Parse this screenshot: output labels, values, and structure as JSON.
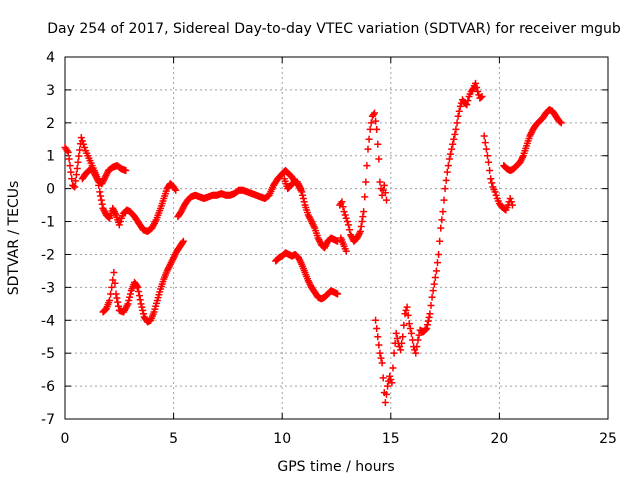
{
  "chart_data": {
    "type": "scatter",
    "title": "Day 254 of 2017, Sidereal Day-to-day VTEC variation (SDTVAR) for receiver mgub",
    "xlabel": "GPS time / hours",
    "ylabel": "SDTVAR / TECUs",
    "xlim": [
      0,
      25
    ],
    "ylim": [
      -7,
      4
    ],
    "xticks": [
      0,
      5,
      10,
      15,
      20,
      25
    ],
    "yticks": [
      -7,
      -6,
      -5,
      -4,
      -3,
      -2,
      -1,
      0,
      1,
      2,
      3,
      4
    ],
    "grid": true,
    "marker": "+",
    "color": "#ff0000",
    "series": [
      {
        "values": [
          [
            0.0,
            1.25
          ],
          [
            0.05,
            1.2
          ],
          [
            0.1,
            1.15
          ],
          [
            0.15,
            1.1
          ],
          [
            0.35,
            0.1
          ],
          [
            0.45,
            0.05
          ],
          [
            0.75,
            1.55
          ],
          [
            0.85,
            1.35
          ],
          [
            0.95,
            1.15
          ],
          [
            1.05,
            1.0
          ],
          [
            1.15,
            0.85
          ],
          [
            1.25,
            0.7
          ],
          [
            1.35,
            0.55
          ],
          [
            1.5,
            0.3
          ],
          [
            1.6,
            -0.1
          ],
          [
            1.75,
            -0.6
          ],
          [
            1.9,
            -0.8
          ],
          [
            2.05,
            -0.9
          ],
          [
            2.2,
            -0.6
          ],
          [
            2.35,
            -0.8
          ],
          [
            2.5,
            -1.1
          ],
          [
            2.6,
            -0.9
          ],
          [
            2.7,
            -0.75
          ],
          [
            2.85,
            -0.65
          ],
          [
            3.0,
            -0.7
          ],
          [
            3.2,
            -0.85
          ],
          [
            3.4,
            -1.05
          ],
          [
            3.6,
            -1.25
          ],
          [
            3.8,
            -1.3
          ],
          [
            4.0,
            -1.2
          ],
          [
            4.2,
            -0.95
          ],
          [
            4.4,
            -0.6
          ],
          [
            4.55,
            -0.3
          ],
          [
            4.7,
            0.0
          ],
          [
            4.85,
            0.15
          ],
          [
            5.0,
            0.05
          ],
          [
            5.1,
            -0.05
          ]
        ]
      },
      {
        "values": [
          [
            0.8,
            0.3
          ],
          [
            0.95,
            0.45
          ],
          [
            1.1,
            0.55
          ],
          [
            1.25,
            0.6
          ],
          [
            1.4,
            0.4
          ],
          [
            1.55,
            0.2
          ],
          [
            1.7,
            0.15
          ],
          [
            1.85,
            0.35
          ],
          [
            2.0,
            0.55
          ],
          [
            2.2,
            0.65
          ],
          [
            2.4,
            0.7
          ],
          [
            2.6,
            0.6
          ],
          [
            2.8,
            0.55
          ]
        ]
      },
      {
        "values": [
          [
            1.75,
            -3.75
          ],
          [
            1.9,
            -3.65
          ],
          [
            2.05,
            -3.4
          ],
          [
            2.15,
            -3.0
          ],
          [
            2.25,
            -2.55
          ],
          [
            2.35,
            -3.2
          ],
          [
            2.5,
            -3.7
          ],
          [
            2.7,
            -3.75
          ],
          [
            2.9,
            -3.5
          ],
          [
            3.05,
            -3.1
          ],
          [
            3.2,
            -2.85
          ],
          [
            3.35,
            -3.0
          ],
          [
            3.5,
            -3.5
          ],
          [
            3.65,
            -3.9
          ],
          [
            3.8,
            -4.05
          ],
          [
            3.95,
            -4.0
          ],
          [
            4.1,
            -3.75
          ],
          [
            4.25,
            -3.4
          ],
          [
            4.4,
            -3.05
          ],
          [
            4.55,
            -2.75
          ],
          [
            4.7,
            -2.5
          ],
          [
            4.85,
            -2.3
          ],
          [
            5.0,
            -2.1
          ],
          [
            5.15,
            -1.9
          ],
          [
            5.3,
            -1.75
          ],
          [
            5.45,
            -1.6
          ]
        ]
      },
      {
        "values": [
          [
            5.2,
            -0.85
          ],
          [
            5.35,
            -0.7
          ],
          [
            5.5,
            -0.5
          ],
          [
            5.65,
            -0.35
          ],
          [
            5.8,
            -0.25
          ],
          [
            6.0,
            -0.2
          ],
          [
            6.2,
            -0.25
          ],
          [
            6.4,
            -0.3
          ],
          [
            6.6,
            -0.25
          ],
          [
            6.8,
            -0.2
          ],
          [
            7.0,
            -0.2
          ],
          [
            7.2,
            -0.15
          ],
          [
            7.4,
            -0.2
          ],
          [
            7.6,
            -0.2
          ],
          [
            7.8,
            -0.15
          ],
          [
            8.0,
            -0.05
          ],
          [
            8.2,
            -0.05
          ],
          [
            8.4,
            -0.1
          ],
          [
            8.6,
            -0.15
          ],
          [
            8.8,
            -0.2
          ],
          [
            9.0,
            -0.25
          ],
          [
            9.2,
            -0.3
          ],
          [
            9.4,
            -0.2
          ],
          [
            9.6,
            0.1
          ],
          [
            9.8,
            0.3
          ],
          [
            10.0,
            0.45
          ],
          [
            10.15,
            0.55
          ],
          [
            10.3,
            0.45
          ],
          [
            10.45,
            0.35
          ],
          [
            10.6,
            0.2
          ],
          [
            10.75,
            0.1
          ],
          [
            10.9,
            -0.1
          ],
          [
            11.05,
            -0.5
          ],
          [
            11.2,
            -0.8
          ],
          [
            11.35,
            -1.0
          ],
          [
            11.5,
            -1.2
          ],
          [
            11.65,
            -1.5
          ],
          [
            11.8,
            -1.7
          ],
          [
            11.95,
            -1.8
          ],
          [
            12.1,
            -1.6
          ],
          [
            12.25,
            -1.5
          ],
          [
            12.4,
            -1.55
          ],
          [
            12.55,
            -1.6
          ]
        ]
      },
      {
        "values": [
          [
            10.1,
            0.3
          ],
          [
            10.25,
            0.0
          ],
          [
            10.4,
            0.1
          ],
          [
            10.55,
            0.2
          ],
          [
            10.7,
            0.2
          ],
          [
            10.85,
            0.0
          ]
        ]
      },
      {
        "values": [
          [
            9.7,
            -2.2
          ],
          [
            9.85,
            -2.1
          ],
          [
            10.0,
            -2.05
          ],
          [
            10.15,
            -1.95
          ],
          [
            10.3,
            -2.0
          ],
          [
            10.45,
            -2.05
          ],
          [
            10.6,
            -2.0
          ],
          [
            10.75,
            -2.1
          ],
          [
            10.9,
            -2.3
          ],
          [
            11.05,
            -2.55
          ],
          [
            11.2,
            -2.8
          ],
          [
            11.35,
            -3.0
          ],
          [
            11.5,
            -3.15
          ],
          [
            11.65,
            -3.3
          ],
          [
            11.8,
            -3.35
          ],
          [
            11.95,
            -3.3
          ],
          [
            12.1,
            -3.2
          ],
          [
            12.25,
            -3.1
          ],
          [
            12.4,
            -3.15
          ],
          [
            12.55,
            -3.2
          ]
        ]
      },
      {
        "values": [
          [
            12.65,
            -0.5
          ],
          [
            12.75,
            -0.4
          ],
          [
            12.85,
            -0.7
          ],
          [
            12.95,
            -0.9
          ],
          [
            13.05,
            -1.1
          ],
          [
            13.15,
            -1.4
          ],
          [
            13.3,
            -1.6
          ],
          [
            13.45,
            -1.5
          ],
          [
            13.6,
            -1.3
          ],
          [
            13.75,
            -0.7
          ],
          [
            13.85,
            0.2
          ],
          [
            13.95,
            1.2
          ],
          [
            14.05,
            1.8
          ],
          [
            14.15,
            2.2
          ],
          [
            14.25,
            2.3
          ],
          [
            14.35,
            1.8
          ],
          [
            14.45,
            0.9
          ],
          [
            14.5,
            0.2
          ],
          [
            14.6,
            -0.2
          ],
          [
            14.7,
            0.1
          ],
          [
            14.8,
            -0.35
          ]
        ]
      },
      {
        "values": [
          [
            12.7,
            -1.5
          ],
          [
            12.85,
            -1.75
          ],
          [
            12.95,
            -1.9
          ]
        ]
      },
      {
        "values": [
          [
            14.3,
            -4.0
          ],
          [
            14.4,
            -4.5
          ],
          [
            14.5,
            -5.0
          ],
          [
            14.6,
            -5.3
          ],
          [
            14.7,
            -6.2
          ],
          [
            14.75,
            -6.5
          ],
          [
            14.85,
            -6.0
          ],
          [
            14.95,
            -5.7
          ],
          [
            15.05,
            -5.9
          ],
          [
            15.15,
            -5.0
          ],
          [
            15.25,
            -4.4
          ],
          [
            15.35,
            -4.7
          ],
          [
            15.45,
            -4.9
          ],
          [
            15.55,
            -4.5
          ],
          [
            15.65,
            -3.8
          ],
          [
            15.75,
            -3.6
          ],
          [
            15.85,
            -4.1
          ],
          [
            15.95,
            -4.4
          ],
          [
            16.05,
            -4.8
          ],
          [
            16.15,
            -5.0
          ],
          [
            16.25,
            -4.6
          ],
          [
            16.35,
            -4.3
          ],
          [
            16.5,
            -4.35
          ],
          [
            16.65,
            -4.25
          ],
          [
            16.8,
            -3.8
          ],
          [
            16.9,
            -3.3
          ],
          [
            17.0,
            -2.9
          ],
          [
            17.1,
            -2.5
          ],
          [
            17.2,
            -2.0
          ],
          [
            17.3,
            -1.2
          ],
          [
            17.4,
            -0.7
          ],
          [
            17.5,
            0.0
          ],
          [
            17.6,
            0.5
          ],
          [
            17.7,
            0.9
          ],
          [
            17.8,
            1.2
          ],
          [
            17.9,
            1.5
          ],
          [
            18.0,
            1.8
          ],
          [
            18.1,
            2.2
          ],
          [
            18.2,
            2.5
          ],
          [
            18.3,
            2.7
          ],
          [
            18.4,
            2.6
          ],
          [
            18.5,
            2.55
          ],
          [
            18.6,
            2.8
          ],
          [
            18.7,
            2.95
          ],
          [
            18.8,
            3.05
          ],
          [
            18.9,
            3.2
          ],
          [
            19.0,
            2.95
          ],
          [
            19.1,
            2.75
          ],
          [
            19.2,
            2.8
          ]
        ]
      },
      {
        "values": [
          [
            19.3,
            1.6
          ],
          [
            19.4,
            1.2
          ],
          [
            19.5,
            0.8
          ],
          [
            19.6,
            0.3
          ],
          [
            19.7,
            0.05
          ],
          [
            19.8,
            -0.1
          ],
          [
            19.9,
            -0.3
          ],
          [
            20.0,
            -0.45
          ],
          [
            20.1,
            -0.55
          ],
          [
            20.2,
            -0.6
          ],
          [
            20.3,
            -0.65
          ],
          [
            20.4,
            -0.5
          ],
          [
            20.5,
            -0.3
          ],
          [
            20.6,
            -0.5
          ]
        ]
      },
      {
        "values": [
          [
            20.2,
            0.7
          ],
          [
            20.35,
            0.6
          ],
          [
            20.5,
            0.55
          ],
          [
            20.65,
            0.6
          ],
          [
            20.8,
            0.7
          ],
          [
            20.95,
            0.8
          ],
          [
            21.1,
            1.0
          ],
          [
            21.25,
            1.3
          ],
          [
            21.4,
            1.6
          ],
          [
            21.55,
            1.8
          ],
          [
            21.7,
            1.95
          ],
          [
            21.85,
            2.05
          ],
          [
            22.0,
            2.15
          ],
          [
            22.15,
            2.3
          ],
          [
            22.3,
            2.4
          ],
          [
            22.45,
            2.35
          ],
          [
            22.6,
            2.2
          ],
          [
            22.75,
            2.05
          ],
          [
            22.85,
            2.0
          ]
        ]
      }
    ]
  }
}
